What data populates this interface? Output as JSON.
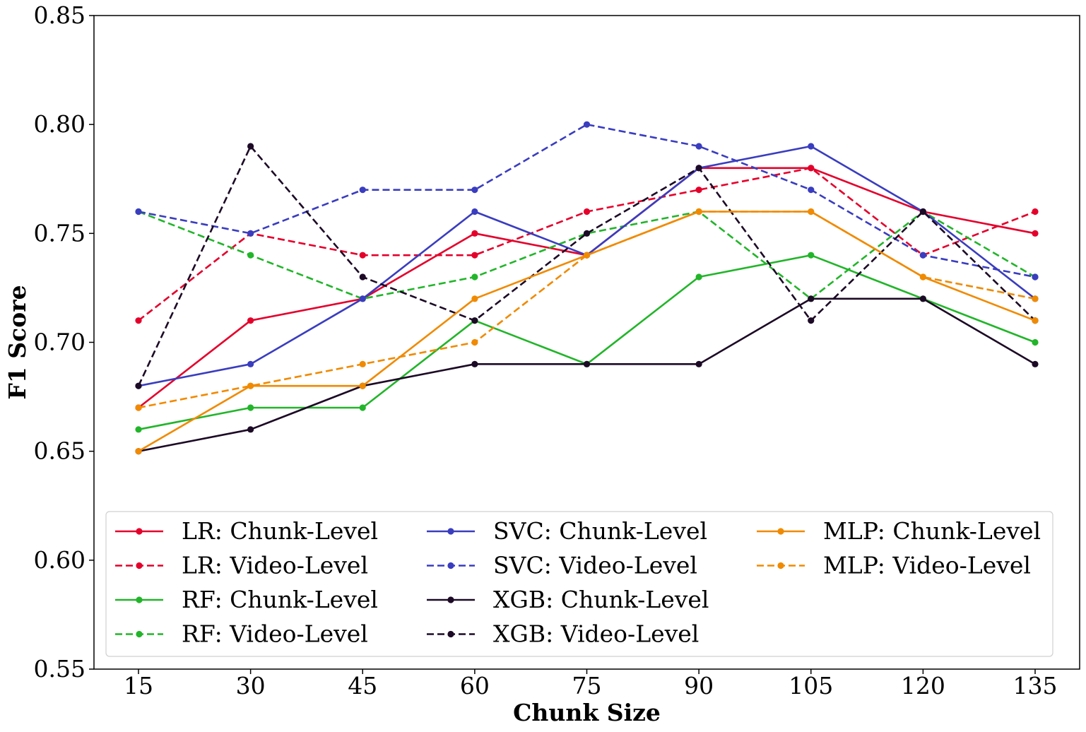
{
  "chart_data": {
    "type": "line",
    "title": "",
    "xlabel": "Chunk Size",
    "ylabel": "F1 Score",
    "x": [
      15,
      30,
      45,
      60,
      75,
      90,
      105,
      120,
      135
    ],
    "x_tick_labels": [
      "15",
      "30",
      "45",
      "60",
      "75",
      "90",
      "105",
      "120",
      "135"
    ],
    "ylim": [
      0.55,
      0.85
    ],
    "y_ticks": [
      0.55,
      0.6,
      0.65,
      0.7,
      0.75,
      0.8,
      0.85
    ],
    "y_tick_labels": [
      "0.55",
      "0.60",
      "0.65",
      "0.70",
      "0.75",
      "0.80",
      "0.85"
    ],
    "grid": false,
    "legend_position": "lower-center",
    "legend_columns": 3,
    "series": [
      {
        "name": "LR: Chunk-Level",
        "color": "#e4002b",
        "dashed": false,
        "values": [
          0.67,
          0.71,
          0.72,
          0.75,
          0.74,
          0.78,
          0.78,
          0.76,
          0.75
        ]
      },
      {
        "name": "LR: Video-Level",
        "color": "#e4002b",
        "dashed": true,
        "values": [
          0.71,
          0.75,
          0.74,
          0.74,
          0.76,
          0.77,
          0.78,
          0.74,
          0.76
        ]
      },
      {
        "name": "RF: Chunk-Level",
        "color": "#22b52a",
        "dashed": false,
        "values": [
          0.66,
          0.67,
          0.67,
          0.71,
          0.69,
          0.73,
          0.74,
          0.72,
          0.7
        ]
      },
      {
        "name": "RF: Video-Level",
        "color": "#22b52a",
        "dashed": true,
        "values": [
          0.76,
          0.74,
          0.72,
          0.73,
          0.75,
          0.76,
          0.72,
          0.76,
          0.73
        ]
      },
      {
        "name": "SVC: Chunk-Level",
        "color": "#3a3dbf",
        "dashed": false,
        "values": [
          0.68,
          0.69,
          0.72,
          0.76,
          0.74,
          0.78,
          0.79,
          0.76,
          0.72
        ]
      },
      {
        "name": "SVC: Video-Level",
        "color": "#3a3dbf",
        "dashed": true,
        "values": [
          0.76,
          0.75,
          0.77,
          0.77,
          0.8,
          0.79,
          0.77,
          0.74,
          0.73
        ]
      },
      {
        "name": "XGB: Chunk-Level",
        "color": "#1c0a26",
        "dashed": false,
        "values": [
          0.65,
          0.66,
          0.68,
          0.69,
          0.69,
          0.69,
          0.72,
          0.72,
          0.69
        ]
      },
      {
        "name": "XGB: Video-Level",
        "color": "#1c0a26",
        "dashed": true,
        "values": [
          0.68,
          0.79,
          0.73,
          0.71,
          0.75,
          0.78,
          0.71,
          0.76,
          0.71
        ]
      },
      {
        "name": "MLP: Chunk-Level",
        "color": "#f08a00",
        "dashed": false,
        "values": [
          0.65,
          0.68,
          0.68,
          0.72,
          0.74,
          0.76,
          0.76,
          0.73,
          0.71
        ]
      },
      {
        "name": "MLP: Video-Level",
        "color": "#f08a00",
        "dashed": true,
        "values": [
          0.67,
          0.68,
          0.69,
          0.7,
          0.74,
          0.76,
          0.76,
          0.73,
          0.72
        ]
      }
    ]
  }
}
